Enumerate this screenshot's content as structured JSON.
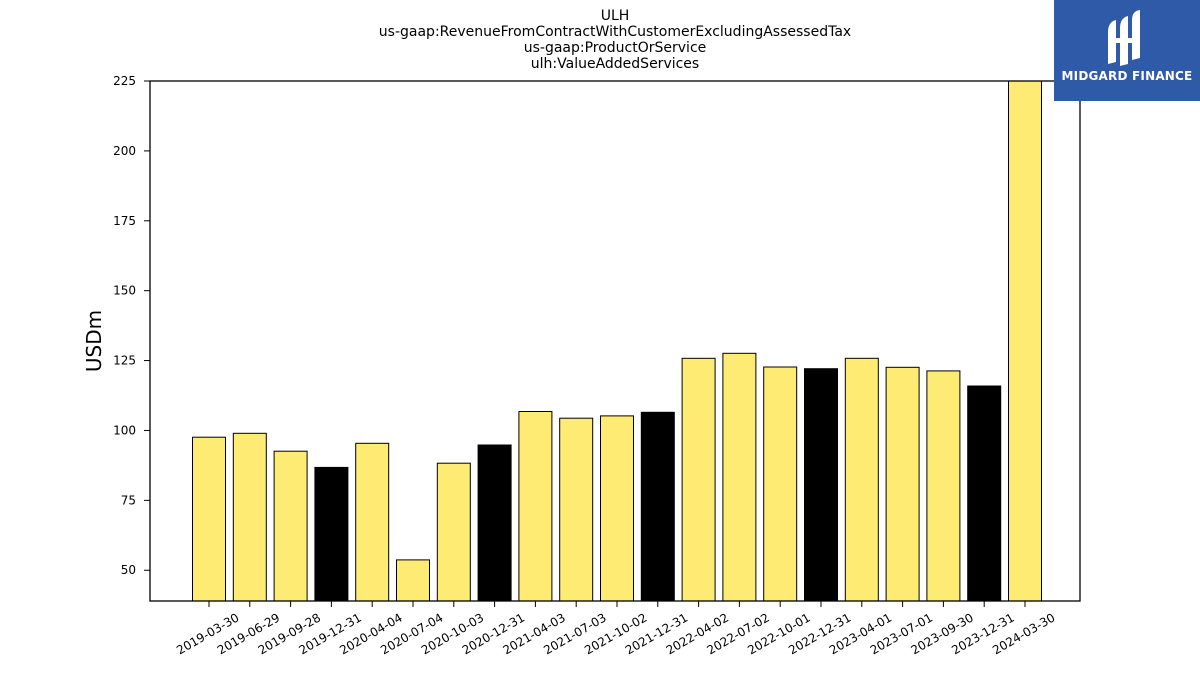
{
  "header": {
    "lines": [
      "ULH",
      "us-gaap:RevenueFromContractWithCustomerExcludingAssessedTax",
      "us-gaap:ProductOrService",
      "ulh:ValueAddedServices"
    ]
  },
  "logo": {
    "text": "MIDGARD FINANCE",
    "icon": "midgard-logo-icon",
    "color": "#2f5aa8"
  },
  "chart_data": {
    "type": "bar",
    "title": "ULH us-gaap:RevenueFromContractWithCustomerExcludingAssessedTax us-gaap:ProductOrService ulh:ValueAddedServices",
    "ylabel": "USDm",
    "xlabel": "",
    "ylim": [
      39,
      225
    ],
    "yticks": [
      50,
      75,
      100,
      125,
      150,
      175,
      200,
      225
    ],
    "grid": false,
    "categories": [
      "2019-03-30",
      "2019-06-29",
      "2019-09-28",
      "2019-12-31",
      "2020-04-04",
      "2020-07-04",
      "2020-10-03",
      "2020-12-31",
      "2021-04-03",
      "2021-07-03",
      "2021-10-02",
      "2021-12-31",
      "2022-04-02",
      "2022-07-02",
      "2022-10-01",
      "2022-12-31",
      "2023-04-01",
      "2023-07-01",
      "2023-09-30",
      "2023-12-31",
      "2024-03-30"
    ],
    "values": [
      97.6,
      99.0,
      92.6,
      86.8,
      95.4,
      53.7,
      88.3,
      94.8,
      106.8,
      104.4,
      105.2,
      106.5,
      125.8,
      127.6,
      122.7,
      122.1,
      125.8,
      122.6,
      121.3,
      115.9,
      225
    ],
    "bar_colors": [
      "#feeb74",
      "#feeb74",
      "#feeb74",
      "#000000",
      "#feeb74",
      "#feeb74",
      "#feeb74",
      "#000000",
      "#feeb74",
      "#feeb74",
      "#feeb74",
      "#000000",
      "#feeb74",
      "#feeb74",
      "#feeb74",
      "#000000",
      "#feeb74",
      "#feeb74",
      "#feeb74",
      "#000000",
      "#feeb74"
    ]
  }
}
